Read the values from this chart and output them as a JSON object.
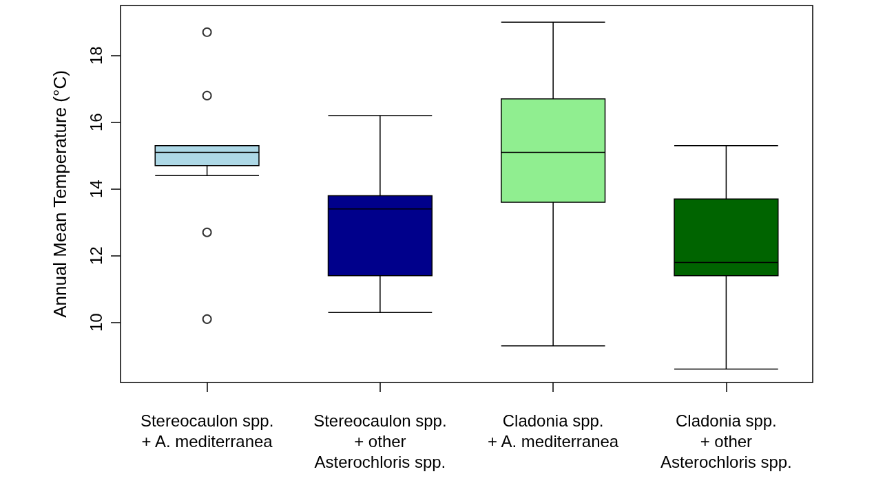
{
  "chart_data": {
    "type": "box",
    "ylabel": "Annual Mean Temperature (°C)",
    "categories": [
      "Stereocaulon spp.\n+ A. mediterranea",
      "Stereocaulon spp.\n+ other\nAsterochloris spp.",
      "Cladonia spp.\n+ A. mediterranea",
      "Cladonia spp.\n+ other\nAsterochloris spp."
    ],
    "colors": [
      "#add8e6",
      "#00008b",
      "#90ee90",
      "#006400"
    ],
    "boxes": [
      {
        "low": 14.4,
        "q1": 14.7,
        "median": 15.1,
        "q3": 15.3,
        "high": 15.3,
        "outliers": [
          18.7,
          16.8,
          12.7,
          10.1
        ]
      },
      {
        "low": 10.3,
        "q1": 11.4,
        "median": 13.4,
        "q3": 13.8,
        "high": 16.2
      },
      {
        "low": 9.3,
        "q1": 13.6,
        "median": 15.1,
        "q3": 16.7,
        "high": 19.0
      },
      {
        "low": 8.6,
        "q1": 11.4,
        "median": 11.8,
        "q3": 13.7,
        "high": 15.3
      }
    ],
    "ylim": [
      8.2,
      19.5
    ],
    "yticks": [
      10,
      12,
      14,
      16,
      18
    ],
    "grid": false,
    "marker": "circle"
  }
}
